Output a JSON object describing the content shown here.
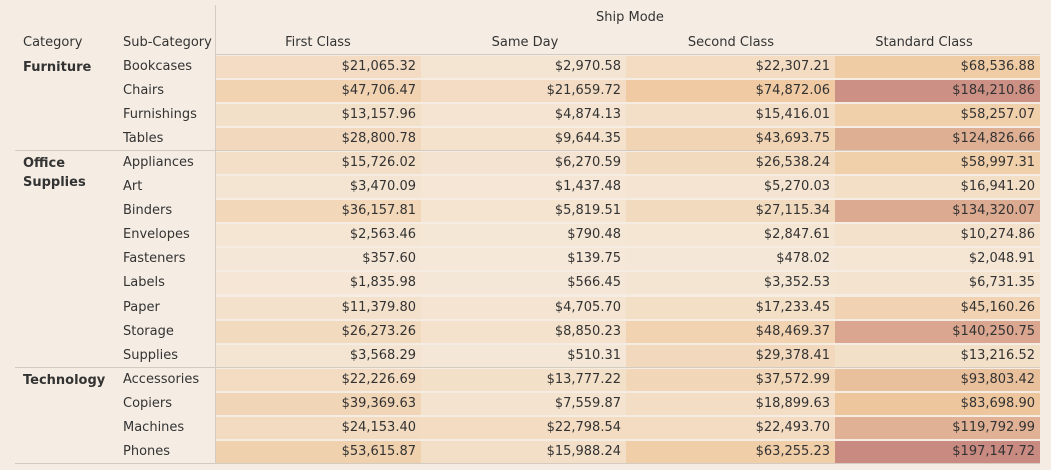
{
  "chart_data": {
    "type": "table",
    "column_group_title": "Ship Mode",
    "row_headers": [
      "Category",
      "Sub-Category"
    ],
    "columns": [
      "First Class",
      "Same Day",
      "Second Class",
      "Standard Class"
    ],
    "categories": [
      {
        "name_lines": [
          "Furniture"
        ],
        "rows": [
          {
            "sub": "Bookcases",
            "labels": [
              "$21,065.32",
              "$2,970.58",
              "$22,307.21",
              "$68,536.88"
            ],
            "values": [
              21065.32,
              2970.58,
              22307.21,
              68536.88
            ]
          },
          {
            "sub": "Chairs",
            "labels": [
              "$47,706.47",
              "$21,659.72",
              "$74,872.06",
              "$184,210.86"
            ],
            "values": [
              47706.47,
              21659.72,
              74872.06,
              184210.86
            ]
          },
          {
            "sub": "Furnishings",
            "labels": [
              "$13,157.96",
              "$4,874.13",
              "$15,416.01",
              "$58,257.07"
            ],
            "values": [
              13157.96,
              4874.13,
              15416.01,
              58257.07
            ]
          },
          {
            "sub": "Tables",
            "labels": [
              "$28,800.78",
              "$9,644.35",
              "$43,693.75",
              "$124,826.66"
            ],
            "values": [
              28800.78,
              9644.35,
              43693.75,
              124826.66
            ]
          }
        ]
      },
      {
        "name_lines": [
          "Office",
          "Supplies"
        ],
        "rows": [
          {
            "sub": "Appliances",
            "labels": [
              "$15,726.02",
              "$6,270.59",
              "$26,538.24",
              "$58,997.31"
            ],
            "values": [
              15726.02,
              6270.59,
              26538.24,
              58997.31
            ]
          },
          {
            "sub": "Art",
            "labels": [
              "$3,470.09",
              "$1,437.48",
              "$5,270.03",
              "$16,941.20"
            ],
            "values": [
              3470.09,
              1437.48,
              5270.03,
              16941.2
            ]
          },
          {
            "sub": "Binders",
            "labels": [
              "$36,157.81",
              "$5,819.51",
              "$27,115.34",
              "$134,320.07"
            ],
            "values": [
              36157.81,
              5819.51,
              27115.34,
              134320.07
            ]
          },
          {
            "sub": "Envelopes",
            "labels": [
              "$2,563.46",
              "$790.48",
              "$2,847.61",
              "$10,274.86"
            ],
            "values": [
              2563.46,
              790.48,
              2847.61,
              10274.86
            ]
          },
          {
            "sub": "Fasteners",
            "labels": [
              "$357.60",
              "$139.75",
              "$478.02",
              "$2,048.91"
            ],
            "values": [
              357.6,
              139.75,
              478.02,
              2048.91
            ]
          },
          {
            "sub": "Labels",
            "labels": [
              "$1,835.98",
              "$566.45",
              "$3,352.53",
              "$6,731.35"
            ],
            "values": [
              1835.98,
              566.45,
              3352.53,
              6731.35
            ]
          },
          {
            "sub": "Paper",
            "labels": [
              "$11,379.80",
              "$4,705.70",
              "$17,233.45",
              "$45,160.26"
            ],
            "values": [
              11379.8,
              4705.7,
              17233.45,
              45160.26
            ]
          },
          {
            "sub": "Storage",
            "labels": [
              "$26,273.26",
              "$8,850.23",
              "$48,469.37",
              "$140,250.75"
            ],
            "values": [
              26273.26,
              8850.23,
              48469.37,
              140250.75
            ]
          },
          {
            "sub": "Supplies",
            "labels": [
              "$3,568.29",
              "$510.31",
              "$29,378.41",
              "$13,216.52"
            ],
            "values": [
              3568.29,
              510.31,
              29378.41,
              13216.52
            ]
          }
        ]
      },
      {
        "name_lines": [
          "Technology"
        ],
        "rows": [
          {
            "sub": "Accessories",
            "labels": [
              "$22,226.69",
              "$13,777.22",
              "$37,572.99",
              "$93,803.42"
            ],
            "values": [
              22226.69,
              13777.22,
              37572.99,
              93803.42
            ]
          },
          {
            "sub": "Copiers",
            "labels": [
              "$39,369.63",
              "$7,559.87",
              "$18,899.63",
              "$83,698.90"
            ],
            "values": [
              39369.63,
              7559.87,
              18899.63,
              83698.9
            ]
          },
          {
            "sub": "Machines",
            "labels": [
              "$24,153.40",
              "$22,798.54",
              "$22,493.70",
              "$119,792.99"
            ],
            "values": [
              24153.4,
              22798.54,
              22493.7,
              119792.99
            ]
          },
          {
            "sub": "Phones",
            "labels": [
              "$53,615.87",
              "$15,988.24",
              "$63,255.23",
              "$197,147.72"
            ],
            "values": [
              53615.87,
              15988.24,
              63255.23,
              197147.72
            ]
          }
        ]
      }
    ],
    "color_scale": {
      "low": "#f5e8d8",
      "mid": "#efc9a0",
      "high": "#c98a82"
    }
  }
}
